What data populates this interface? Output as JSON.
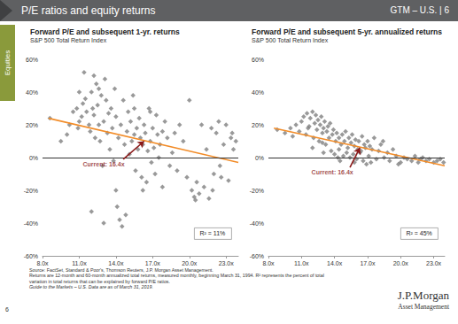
{
  "header": {
    "title": "P/E ratios and equity returns",
    "right": "GTM – U.S. | 6"
  },
  "side_tab": "Equities",
  "footnotes": [
    "Source: FactSet, Standard & Poor's, Thomson Reuters, J.P. Morgan Asset Management.",
    "Returns are 12-month and 60-month annualized total returns, measured monthly, beginning March 31, 1994. R² represents the percent of total",
    "variation in total returns that can be explained by forward P/E ratios.",
    "Guide to the Markets – U.S. Data are as of March 31, 2019."
  ],
  "logo": {
    "name": "J.P.Morgan",
    "sub": "Asset Management"
  },
  "page_number": "6",
  "chart_data": [
    {
      "type": "scatter",
      "title": "Forward P/E and subsequent 1-yr. returns",
      "subtitle": "S&P 500 Total Return Index",
      "xlim": [
        8,
        24
      ],
      "xticks": [
        {
          "value": 8,
          "label": "8.0x"
        },
        {
          "value": 11,
          "label": "11.0x"
        },
        {
          "value": 14,
          "label": "14.0x"
        },
        {
          "value": 17,
          "label": "17.0x"
        },
        {
          "value": 20,
          "label": "20.0x"
        },
        {
          "value": 23,
          "label": "23.0x"
        }
      ],
      "ylim": [
        -60,
        60
      ],
      "yticks": [
        {
          "value": -60,
          "label": "-60%"
        },
        {
          "value": -40,
          "label": "-40%"
        },
        {
          "value": -20,
          "label": "-20%"
        },
        {
          "value": 0,
          "label": "0%"
        },
        {
          "value": 20,
          "label": "20%"
        },
        {
          "value": 40,
          "label": "40%"
        },
        {
          "value": 60,
          "label": "60%"
        }
      ],
      "grid": false,
      "note": "R² = 11%",
      "annotations": [
        {
          "text": "Current: 16.4x",
          "x": 13.0,
          "y": -4,
          "arrow_from": [
            14.6,
            -1
          ],
          "arrow_to": [
            16.3,
            10
          ]
        }
      ],
      "series": [
        {
          "type": "scatter",
          "color": "#7f7f7f",
          "marker": "diamond",
          "x": [
            8.6,
            9.5,
            10.2,
            10.5,
            10.8,
            10.9,
            11.0,
            11.2,
            11.3,
            11.5,
            11.6,
            11.8,
            11.9,
            12.0,
            12.1,
            12.2,
            12.3,
            12.4,
            12.5,
            12.6,
            12.7,
            12.8,
            12.9,
            13.0,
            13.1,
            13.2,
            13.3,
            13.4,
            13.5,
            13.6,
            13.7,
            13.8,
            13.9,
            14.0,
            14.1,
            14.2,
            14.3,
            14.4,
            14.5,
            14.6,
            14.7,
            14.8,
            14.9,
            15.0,
            15.1,
            15.2,
            15.3,
            15.4,
            15.5,
            15.6,
            15.7,
            15.8,
            15.9,
            16.0,
            16.1,
            16.2,
            16.3,
            16.4,
            16.5,
            16.6,
            16.7,
            16.8,
            16.9,
            17.0,
            17.1,
            17.2,
            17.3,
            17.4,
            17.5,
            17.6,
            17.8,
            18.0,
            18.2,
            18.4,
            18.6,
            18.8,
            19.0,
            19.2,
            19.5,
            19.8,
            20.0,
            20.2,
            20.4,
            20.6,
            20.8,
            21.0,
            21.2,
            21.4,
            21.6,
            21.8,
            22.0,
            22.2,
            22.4,
            22.6,
            22.8,
            23.0,
            23.2,
            23.4,
            23.6,
            23.8,
            21.9,
            22.5,
            20.5,
            23.5,
            12.0,
            13.0,
            14.0,
            16.8,
            17.8,
            12.6,
            11.4,
            12.2,
            11.0,
            10.0,
            15.5,
            16.2
          ],
          "values": [
            24,
            10,
            20,
            28,
            30,
            18,
            22,
            25,
            33,
            36,
            28,
            20,
            16,
            40,
            30,
            26,
            12,
            45,
            32,
            20,
            10,
            38,
            -5,
            22,
            48,
            35,
            15,
            27,
            5,
            30,
            18,
            -2,
            42,
            25,
            -30,
            12,
            -38,
            20,
            -42,
            35,
            8,
            -35,
            16,
            28,
            2,
            22,
            10,
            38,
            14,
            -8,
            18,
            5,
            24,
            12,
            -12,
            8,
            20,
            15,
            -15,
            4,
            30,
            10,
            -3,
            18,
            6,
            -10,
            26,
            14,
            0,
            8,
            -18,
            22,
            12,
            -5,
            3,
            15,
            -8,
            20,
            10,
            -12,
            35,
            -20,
            -24,
            -15,
            -22,
            20,
            -18,
            5,
            -25,
            18,
            -10,
            15,
            22,
            -12,
            8,
            20,
            -14,
            12,
            5,
            10,
            -20,
            -5,
            -26,
            15,
            -33,
            -40,
            -20,
            28,
            16,
            42,
            52,
            50,
            40,
            14,
            30,
            -20
          ]
        },
        {
          "type": "line",
          "color": "#f28c28",
          "line_style": "solid",
          "x": [
            8.5,
            24
          ],
          "values": [
            24,
            -3
          ]
        }
      ]
    },
    {
      "type": "scatter",
      "title": "Forward P/E and subsequent 5-yr. annualized returns",
      "subtitle": "S&P 500 Total Return Index",
      "xlim": [
        8,
        24
      ],
      "xticks": [
        {
          "value": 8,
          "label": "8.0x"
        },
        {
          "value": 11,
          "label": "11.0x"
        },
        {
          "value": 14,
          "label": "14.0x"
        },
        {
          "value": 17,
          "label": "17.0x"
        },
        {
          "value": 20,
          "label": "20.0x"
        },
        {
          "value": 23,
          "label": "23.0x"
        }
      ],
      "ylim": [
        -60,
        60
      ],
      "yticks": [
        {
          "value": -60,
          "label": "-60%"
        },
        {
          "value": -40,
          "label": "-40%"
        },
        {
          "value": -20,
          "label": "-20%"
        },
        {
          "value": 0,
          "label": "0%"
        },
        {
          "value": 20,
          "label": "20%"
        },
        {
          "value": 40,
          "label": "40%"
        },
        {
          "value": 60,
          "label": "60%"
        }
      ],
      "grid": false,
      "note": "R² = 45%",
      "annotations": [
        {
          "text": "Current: 16.4x",
          "x": 13.8,
          "y": -9,
          "arrow_from": [
            15.4,
            -6
          ],
          "arrow_to": [
            16.3,
            6
          ]
        }
      ],
      "series": [
        {
          "type": "scatter",
          "color": "#7f7f7f",
          "marker": "diamond",
          "x": [
            8.8,
            9.5,
            10.0,
            10.5,
            10.8,
            11.0,
            11.2,
            11.4,
            11.5,
            11.7,
            11.8,
            12.0,
            12.1,
            12.2,
            12.3,
            12.4,
            12.5,
            12.6,
            12.7,
            12.8,
            12.9,
            13.0,
            13.1,
            13.2,
            13.3,
            13.4,
            13.5,
            13.6,
            13.7,
            13.8,
            13.9,
            14.0,
            14.1,
            14.2,
            14.3,
            14.4,
            14.5,
            14.6,
            14.7,
            14.8,
            14.9,
            15.0,
            15.1,
            15.2,
            15.3,
            15.4,
            15.5,
            15.6,
            15.7,
            15.8,
            15.9,
            16.0,
            16.1,
            16.2,
            16.3,
            16.4,
            16.5,
            16.6,
            16.7,
            16.8,
            16.9,
            17.0,
            17.1,
            17.2,
            17.3,
            17.4,
            17.6,
            17.8,
            18.0,
            18.2,
            18.5,
            18.8,
            19.0,
            19.3,
            19.6,
            20.0,
            20.3,
            20.6,
            21.0,
            21.3,
            21.6,
            22.0,
            22.3,
            22.6,
            23.0,
            23.3,
            23.6,
            23.9,
            10.2,
            11.6,
            12.9,
            14.4,
            15.8,
            13.0,
            12.0,
            18.4,
            19.8,
            21.8
          ],
          "values": [
            17,
            15,
            18,
            20,
            16,
            22,
            25,
            14,
            27,
            19,
            24,
            28,
            12,
            21,
            26,
            17,
            23,
            10,
            20,
            25,
            15,
            18,
            22,
            8,
            16,
            19,
            12,
            21,
            4,
            14,
            17,
            2,
            10,
            15,
            0,
            12,
            -2,
            8,
            14,
            1,
            10,
            16,
            3,
            6,
            12,
            0,
            9,
            14,
            2,
            7,
            11,
            -1,
            5,
            10,
            3,
            4,
            13,
            -2,
            8,
            6,
            -4,
            10,
            1,
            7,
            -3,
            5,
            12,
            -1,
            4,
            8,
            0,
            3,
            -2,
            5,
            1,
            -3,
            0,
            -1,
            -2,
            1,
            -3,
            0,
            -2,
            -1,
            -3,
            -2,
            -1,
            -3,
            13,
            18,
            9,
            5,
            -3,
            3,
            6,
            10,
            -4,
            -1
          ]
        },
        {
          "type": "line",
          "color": "#f28c28",
          "line_style": "solid",
          "x": [
            8.5,
            24
          ],
          "values": [
            18,
            -5
          ]
        }
      ]
    }
  ]
}
